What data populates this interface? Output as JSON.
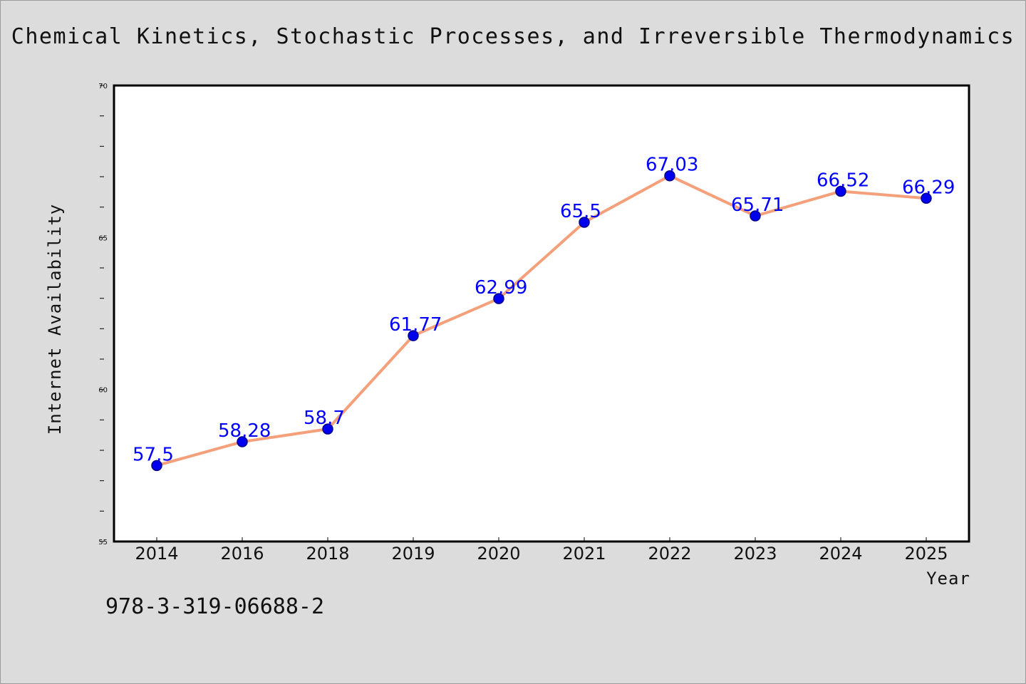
{
  "title": "Chemical Kinetics, Stochastic Processes, and Irreversible Thermodynamics",
  "footnote": "978-3-319-06688-2",
  "chart_data": {
    "type": "line",
    "categories": [
      "2014",
      "2016",
      "2018",
      "2019",
      "2020",
      "2021",
      "2022",
      "2023",
      "2024",
      "2025"
    ],
    "series": [
      {
        "values": [
          57.5,
          58.28,
          58.7,
          61.77,
          62.99,
          65.5,
          67.03,
          65.71,
          66.52,
          66.29
        ],
        "labels": [
          "57.5",
          "58.28",
          "58.7",
          "61.77",
          "62.99",
          "65.5",
          "67.03",
          "65.71",
          "66.52",
          "66.29"
        ]
      }
    ],
    "xlabel": "Year",
    "ylabel": "Internet Availability",
    "ylim": [
      55,
      70
    ],
    "yticks": [
      "55",
      "60",
      "65",
      "70"
    ],
    "grid": false,
    "colors": {
      "line": "#f4a07a",
      "marker": "#0000ee",
      "marker_edge": "#00008b",
      "data_label": "#0000ff",
      "plot_background": "#ffffff",
      "page_background": "#dcdcdc"
    }
  }
}
